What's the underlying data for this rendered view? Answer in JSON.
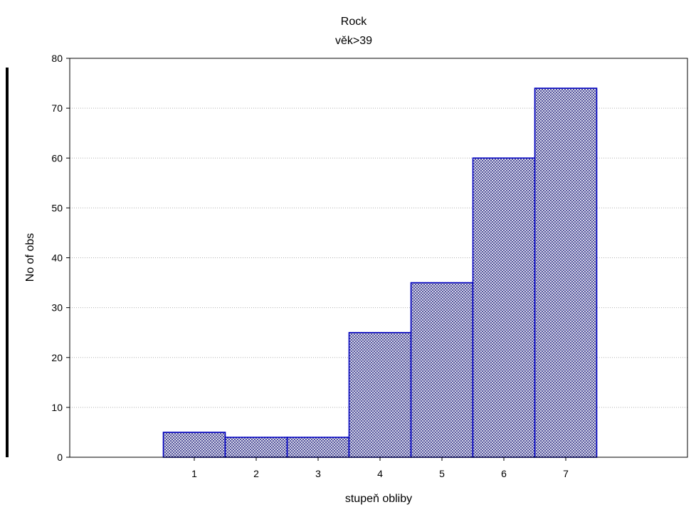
{
  "chart_data": {
    "type": "bar",
    "title": "Rock",
    "subtitle": "věk>39",
    "xlabel": "stupeň obliby",
    "ylabel": "No of obs",
    "categories": [
      "1",
      "2",
      "3",
      "4",
      "5",
      "6",
      "7"
    ],
    "values": [
      5,
      4,
      4,
      25,
      35,
      60,
      74
    ],
    "ylim": [
      0,
      80
    ],
    "yticks": [
      "0",
      "10",
      "20",
      "30",
      "40",
      "50",
      "60",
      "70",
      "80"
    ],
    "grid": true,
    "legend": "none",
    "colors": {
      "bar_stroke": "#0000c0",
      "bar_hatch": "#3b3b8f",
      "grid": "#b0b0b0",
      "axis": "#000000"
    }
  }
}
